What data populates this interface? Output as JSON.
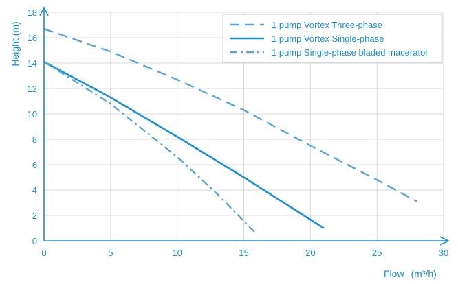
{
  "chart_data": {
    "type": "line",
    "xlabel": "Flow",
    "xlabel_unit": "(m³/h)",
    "ylabel": "Height  (m)",
    "xlim": [
      0,
      30
    ],
    "ylim": [
      0,
      18
    ],
    "x_ticks": [
      0,
      5,
      10,
      15,
      20,
      25,
      30
    ],
    "y_ticks": [
      0,
      2,
      4,
      6,
      8,
      10,
      12,
      14,
      16,
      18
    ],
    "grid": true,
    "legend_position": "top-right",
    "series": [
      {
        "name": "1 pump Vortex Three-phase",
        "dash": "dashed",
        "color": "#5aa6dc",
        "points": [
          [
            0,
            16.7
          ],
          [
            5,
            14.9
          ],
          [
            10,
            12.7
          ],
          [
            15,
            10.3
          ],
          [
            20,
            7.5
          ],
          [
            25,
            4.8
          ],
          [
            28,
            3.1
          ]
        ]
      },
      {
        "name": "1 pump Vortex Single-phase",
        "dash": "solid",
        "color": "#1b8fd0",
        "points": [
          [
            0,
            14.1
          ],
          [
            5,
            11.3
          ],
          [
            10,
            8.2
          ],
          [
            15,
            5.0
          ],
          [
            21,
            1.0
          ]
        ]
      },
      {
        "name": "1 pump Single-phase bladed macerator",
        "dash": "dashdot",
        "color": "#5aa6dc",
        "points": [
          [
            0,
            14.1
          ],
          [
            5,
            10.8
          ],
          [
            10,
            6.6
          ],
          [
            13,
            3.7
          ],
          [
            15.8,
            0.7
          ]
        ]
      }
    ]
  }
}
